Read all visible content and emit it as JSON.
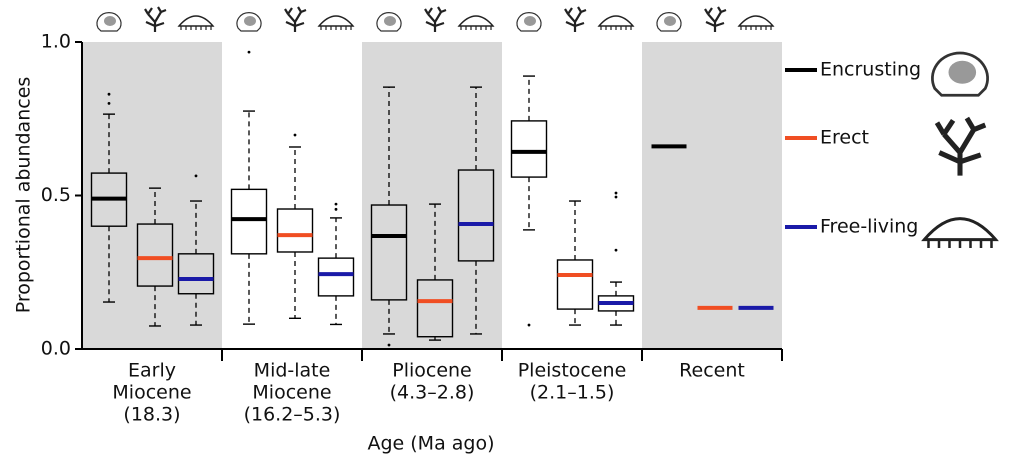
{
  "chart_data": {
    "type": "box",
    "ylabel": "Proportional abundances",
    "xlabel": "Age (Ma ago)",
    "categories": [
      [
        "Early",
        "Miocene",
        "(18.3)"
      ],
      [
        "Mid-late",
        "Miocene",
        "(16.2–5.3)"
      ],
      [
        "Pliocene",
        "(4.3–2.8)"
      ],
      [
        "Pleistocene",
        "(2.1–1.5)"
      ],
      [
        "Recent"
      ]
    ],
    "shaded": [
      true,
      false,
      true,
      false,
      true
    ],
    "ylim": [
      0,
      1
    ],
    "yticks": [
      {
        "value": 0,
        "label": "0.0"
      },
      {
        "value": 0.5,
        "label": "0.5"
      },
      {
        "value": 1,
        "label": "1.0"
      }
    ],
    "series": [
      {
        "name": "Encrusting",
        "color": "#000000",
        "whislo": [
          0.153,
          0.081,
          0.049,
          0.388,
          null
        ],
        "q1": [
          0.4,
          0.31,
          0.16,
          0.56,
          null
        ],
        "med": [
          0.49,
          0.423,
          0.368,
          0.642,
          0.66
        ],
        "q3": [
          0.573,
          0.52,
          0.469,
          0.743,
          null
        ],
        "whishi": [
          0.765,
          0.775,
          0.853,
          0.889,
          null
        ],
        "outliers": [
          [
            0.8,
            0.83
          ],
          [
            0.967
          ],
          [
            0.013
          ],
          [
            0.078
          ],
          []
        ]
      },
      {
        "name": "Erect",
        "color": "#f04e23",
        "whislo": [
          0.075,
          0.1,
          0.029,
          0.078,
          null
        ],
        "q1": [
          0.205,
          0.316,
          0.04,
          0.13,
          null
        ],
        "med": [
          0.296,
          0.371,
          0.156,
          0.241,
          0.134
        ],
        "q3": [
          0.407,
          0.456,
          0.225,
          0.29,
          null
        ],
        "whishi": [
          0.524,
          0.658,
          0.472,
          0.482,
          null
        ],
        "outliers": [
          [],
          [
            0.697
          ],
          [],
          [],
          []
        ]
      },
      {
        "name": "Free-living",
        "color": "#1a1aa8",
        "whislo": [
          0.078,
          0.08,
          0.049,
          0.078,
          null
        ],
        "q1": [
          0.18,
          0.173,
          0.287,
          0.124,
          null
        ],
        "med": [
          0.228,
          0.244,
          0.407,
          0.15,
          0.134
        ],
        "q3": [
          0.31,
          0.296,
          0.583,
          0.173,
          null
        ],
        "whishi": [
          0.482,
          0.427,
          0.853,
          0.218,
          null
        ],
        "outliers": [
          [
            0.564
          ],
          [
            0.472,
            0.455
          ],
          [],
          [
            0.322,
            0.495,
            0.508
          ],
          []
        ]
      }
    ]
  }
}
